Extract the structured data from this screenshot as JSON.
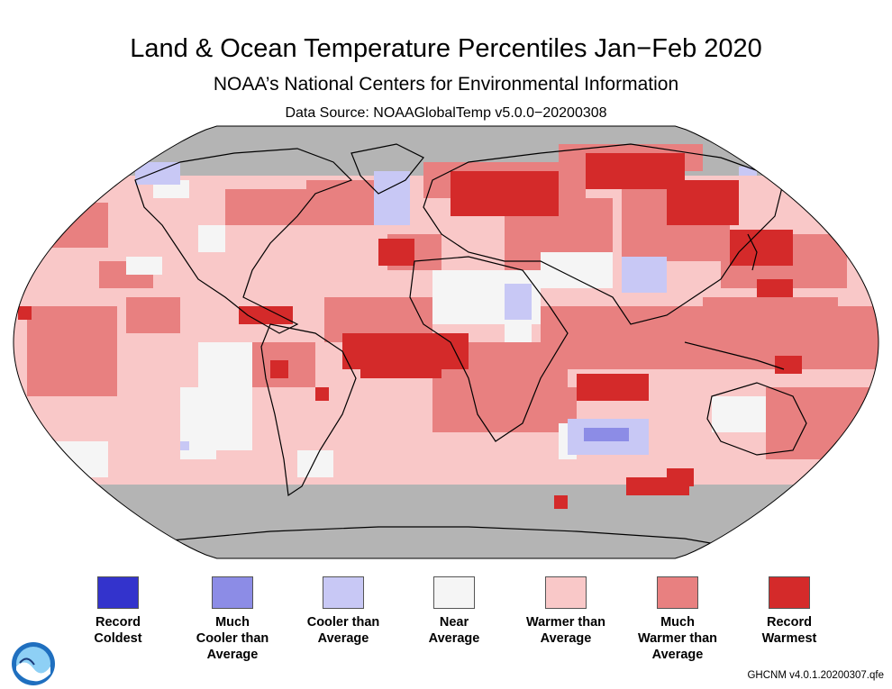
{
  "header": {
    "title": "Land & Ocean Temperature Percentiles Jan−Feb 2020",
    "subtitle": "NOAA’s National Centers for Environmental Information",
    "source": "Data Source: NOAAGlobalTemp v5.0.0−20200308"
  },
  "legend": [
    {
      "label": "Record Coldest",
      "lines": [
        "Record",
        "Coldest"
      ],
      "color": "#3333cc"
    },
    {
      "label": "Much Cooler than Average",
      "lines": [
        "Much",
        "Cooler than",
        "Average"
      ],
      "color": "#8c8ce6"
    },
    {
      "label": "Cooler than Average",
      "lines": [
        "Cooler than",
        "Average"
      ],
      "color": "#c8c8f5"
    },
    {
      "label": "Near Average",
      "lines": [
        "Near",
        "Average"
      ],
      "color": "#f5f5f5"
    },
    {
      "label": "Warmer than Average",
      "lines": [
        "Warmer than",
        "Average"
      ],
      "color": "#f9c8c8"
    },
    {
      "label": "Much Warmer than Average",
      "lines": [
        "Much",
        "Warmer than",
        "Average"
      ],
      "color": "#e88080"
    },
    {
      "label": "Record Warmest",
      "lines": [
        "Record",
        "Warmest"
      ],
      "color": "#d42a2a"
    }
  ],
  "map": {
    "projection": "Robinson",
    "missing_color": "#b4b4b4",
    "logo_text": "NOAA"
  },
  "footer": {
    "code": "GHCNM v4.0.1.20200307.qfe"
  }
}
